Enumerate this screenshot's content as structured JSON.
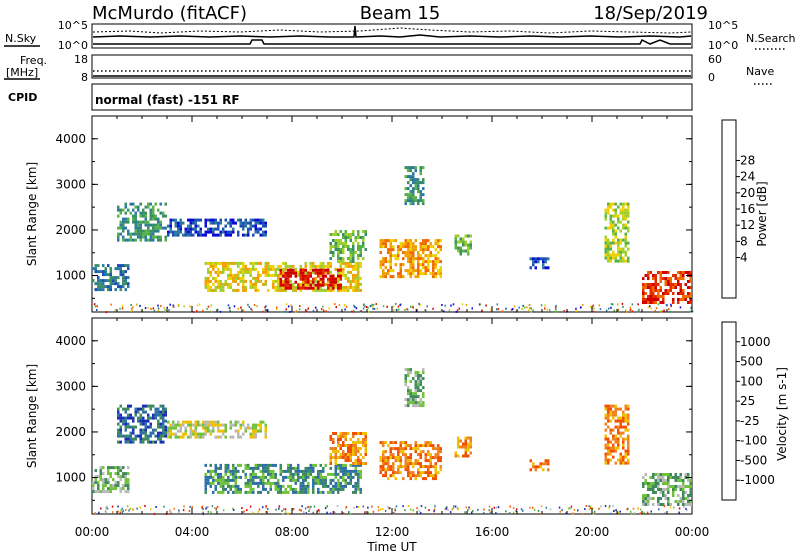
{
  "header": {
    "station": "McMurdo (fitACF)",
    "beam": "Beam 15",
    "date": "18/Sep/2019"
  },
  "top_panels": {
    "nsky_label": "N.Sky",
    "nsky_ticks": [
      "10^5",
      "10^0"
    ],
    "nsearch_label": "N.Search",
    "nsearch_ticks": [
      "10^5",
      "10^0"
    ],
    "freq_label": "Freq.",
    "freq_unit": "[MHz]",
    "freq_ticks": [
      "18",
      "8"
    ],
    "nave_label": "Nave",
    "nave_ticks": [
      "60",
      "0"
    ],
    "cpid_label": "CPID",
    "cpid_text": "normal (fast) -151 RF"
  },
  "chart_data": [
    {
      "type": "heatmap",
      "name": "power",
      "ylabel": "Slant Range [km]",
      "xlabel": "",
      "ylim": [
        200,
        4500
      ],
      "yticks": [
        "1000",
        "2000",
        "3000",
        "4000"
      ],
      "colorbar": {
        "label": "Power [dB]",
        "ticks": [
          "28",
          "24",
          "20",
          "16",
          "12",
          "8",
          "4"
        ],
        "colors": [
          "#0a0ad8",
          "#1a4fb4",
          "#2b7a9e",
          "#3a8f62",
          "#57b347",
          "#9fcf2f",
          "#f0d000",
          "#f0a000",
          "#f06a00",
          "#e62a00",
          "#d00000"
        ]
      },
      "echo_regions": [
        {
          "t0": 0.0,
          "t1": 1.5,
          "r0": 700,
          "r1": 1250,
          "level": 2
        },
        {
          "t0": 1.0,
          "t1": 3.0,
          "r0": 1800,
          "r1": 2600,
          "level": 3
        },
        {
          "t0": 3.0,
          "t1": 7.0,
          "r0": 1900,
          "r1": 2250,
          "level": 1
        },
        {
          "t0": 4.5,
          "t1": 10.8,
          "r0": 700,
          "r1": 1300,
          "level": 6
        },
        {
          "t0": 7.5,
          "t1": 10.0,
          "r0": 700,
          "r1": 1150,
          "level": 10
        },
        {
          "t0": 9.5,
          "t1": 11.0,
          "r0": 1300,
          "r1": 2000,
          "level": 4
        },
        {
          "t0": 11.5,
          "t1": 14.0,
          "r0": 1000,
          "r1": 1800,
          "level": 7
        },
        {
          "t0": 12.5,
          "t1": 13.3,
          "r0": 2600,
          "r1": 3400,
          "level": 3
        },
        {
          "t0": 14.5,
          "t1": 15.2,
          "r0": 1500,
          "r1": 1900,
          "level": 4
        },
        {
          "t0": 17.5,
          "t1": 18.3,
          "r0": 1200,
          "r1": 1400,
          "level": 1
        },
        {
          "t0": 20.5,
          "t1": 21.5,
          "r0": 1300,
          "r1": 2600,
          "level": 5
        },
        {
          "t0": 22.0,
          "t1": 24.0,
          "r0": 400,
          "r1": 1100,
          "level": 9
        }
      ]
    },
    {
      "type": "heatmap",
      "name": "velocity",
      "ylabel": "Slant Range [km]",
      "xlabel": "Time UT",
      "ylim": [
        200,
        4500
      ],
      "xlim": [
        "00:00",
        "24:00"
      ],
      "xticks": [
        "00:00",
        "04:00",
        "08:00",
        "12:00",
        "16:00",
        "20:00",
        "00:00"
      ],
      "yticks": [
        "1000",
        "2000",
        "3000",
        "4000"
      ],
      "colorbar": {
        "label": "Velocity [m s-1]",
        "ticks": [
          "1000",
          "500",
          "100",
          "25",
          "-25",
          "-100",
          "-500",
          "-1000"
        ],
        "colors": [
          "#1a2fb8",
          "#2f6fa8",
          "#3d8a5a",
          "#6fc23a",
          "#b9b9b9",
          "#f0c000",
          "#f08020",
          "#f05000",
          "#e00000"
        ]
      },
      "echo_regions": [
        {
          "t0": 0.0,
          "t1": 1.5,
          "r0": 700,
          "r1": 1250,
          "level": 3
        },
        {
          "t0": 1.0,
          "t1": 3.0,
          "r0": 1800,
          "r1": 2600,
          "level": 1
        },
        {
          "t0": 3.0,
          "t1": 7.0,
          "r0": 1900,
          "r1": 2250,
          "level": 4
        },
        {
          "t0": 4.5,
          "t1": 10.8,
          "r0": 700,
          "r1": 1300,
          "level": 2
        },
        {
          "t0": 9.5,
          "t1": 11.0,
          "r0": 1300,
          "r1": 2000,
          "level": 6
        },
        {
          "t0": 11.5,
          "t1": 14.0,
          "r0": 1000,
          "r1": 1800,
          "level": 6
        },
        {
          "t0": 12.5,
          "t1": 13.3,
          "r0": 2600,
          "r1": 3400,
          "level": 3
        },
        {
          "t0": 14.5,
          "t1": 15.2,
          "r0": 1500,
          "r1": 1900,
          "level": 6
        },
        {
          "t0": 17.5,
          "t1": 18.3,
          "r0": 1200,
          "r1": 1400,
          "level": 6
        },
        {
          "t0": 20.5,
          "t1": 21.5,
          "r0": 1300,
          "r1": 2600,
          "level": 6
        },
        {
          "t0": 22.0,
          "t1": 24.0,
          "r0": 400,
          "r1": 1100,
          "level": 3
        }
      ]
    }
  ]
}
